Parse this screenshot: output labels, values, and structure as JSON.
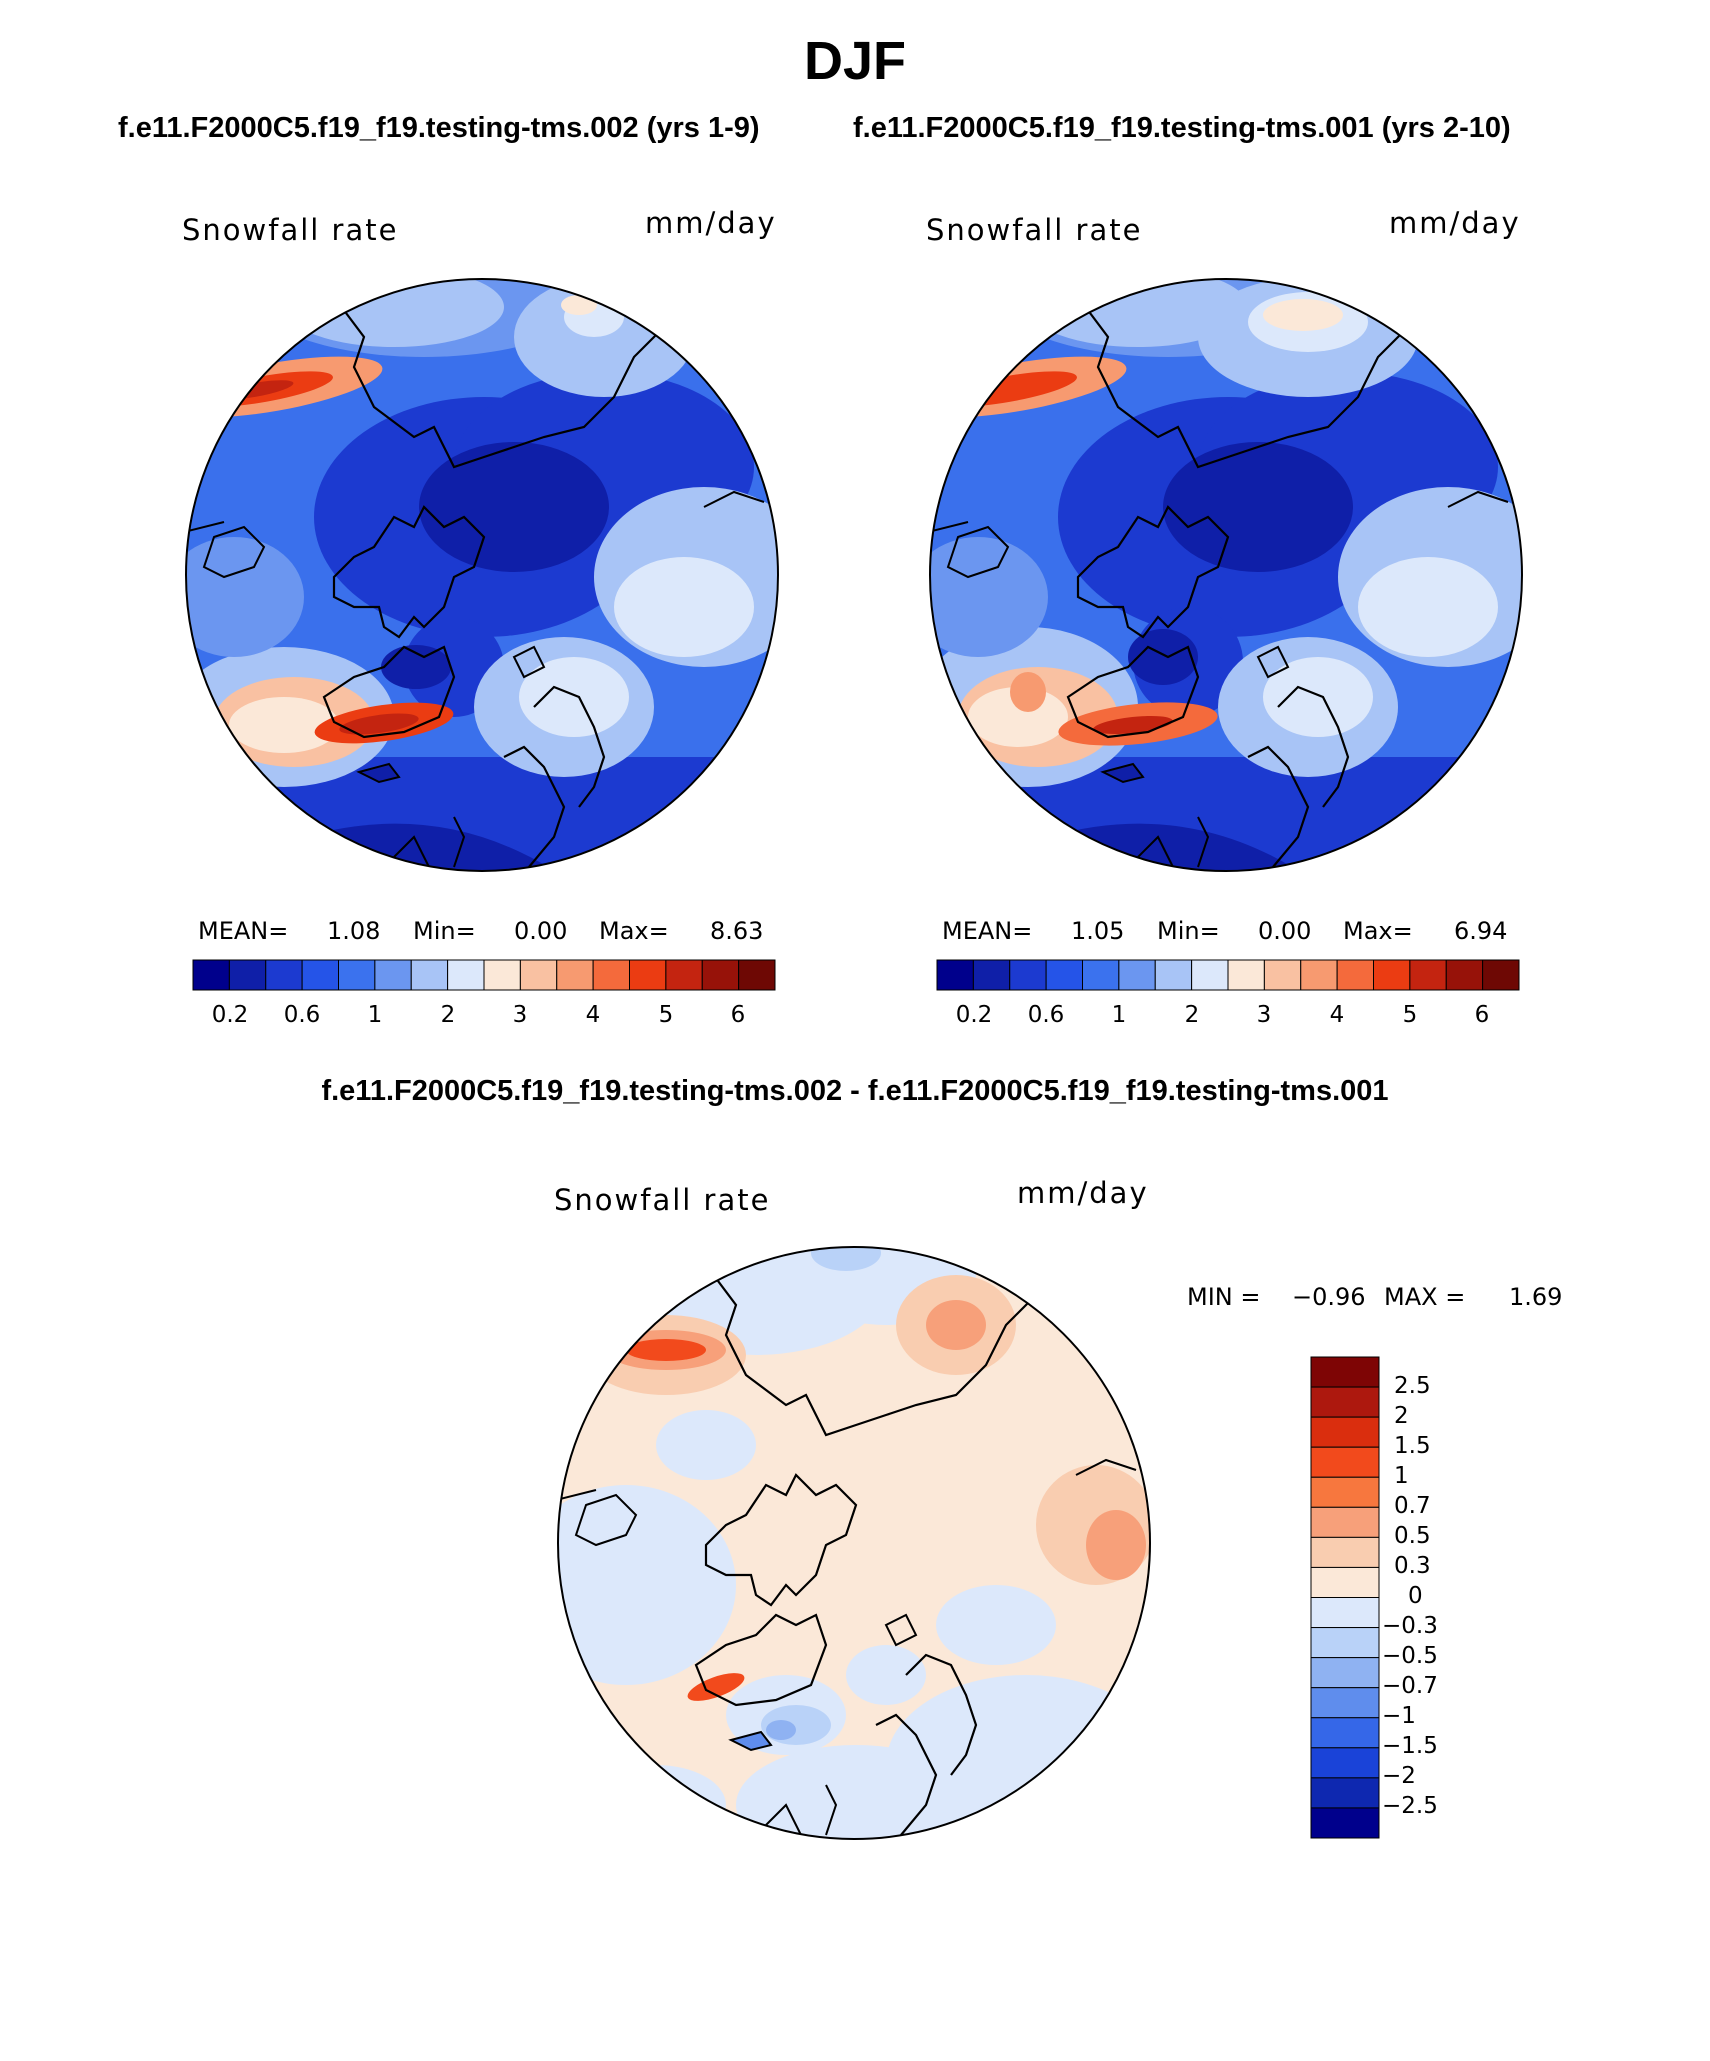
{
  "title": "DJF",
  "panel_left": {
    "run_title": "f.e11.F2000C5.f19_f19.testing-tms.002 (yrs 1-9)",
    "variable": "Snowfall rate",
    "units": "mm/day",
    "mean_label": "MEAN=",
    "mean": "1.08",
    "min_label": "Min=",
    "min": "0.00",
    "max_label": "Max=",
    "max": "8.63"
  },
  "panel_right": {
    "run_title": "f.e11.F2000C5.f19_f19.testing-tms.001 (yrs 2-10)",
    "variable": "Snowfall rate",
    "units": "mm/day",
    "mean_label": "MEAN=",
    "mean": "1.05",
    "min_label": "Min=",
    "min": "0.00",
    "max_label": "Max=",
    "max": "6.94"
  },
  "panel_diff": {
    "title": "f.e11.F2000C5.f19_f19.testing-tms.002 - f.e11.F2000C5.f19_f19.testing-tms.001",
    "variable": "Snowfall rate",
    "units": "mm/day",
    "min_label": "MIN =",
    "min": "−0.96",
    "max_label": "MAX =",
    "max": "1.69"
  },
  "colorbar_main": {
    "colors": [
      "#00008c",
      "#0f1fa8",
      "#1c3ad0",
      "#2554e8",
      "#3b72ee",
      "#6b96f0",
      "#a8c4f6",
      "#dce8fb",
      "#fbe8d8",
      "#f9c1a2",
      "#f79a70",
      "#f46a3c",
      "#eb3c12",
      "#c42410",
      "#971209",
      "#6e0804"
    ],
    "labels": [
      "0.2",
      "0.6",
      "1",
      "2",
      "3",
      "4",
      "5",
      "6"
    ]
  },
  "colorbar_diff": {
    "colors": [
      "#7e0505",
      "#ad180e",
      "#da2e0e",
      "#f24a1c",
      "#f7773e",
      "#f7a07a",
      "#f9cdb0",
      "#fbe8d8",
      "#dce8fb",
      "#b9d2f8",
      "#8fb2f2",
      "#5f8ded",
      "#3567e8",
      "#1a43d8",
      "#0e28b0",
      "#00008c"
    ],
    "labels": [
      "2.5",
      "2",
      "1.5",
      "1",
      "0.7",
      "0.5",
      "0.3",
      "0",
      "−0.3",
      "−0.5",
      "−0.7",
      "−1",
      "−1.5",
      "−2",
      "−2.5"
    ]
  }
}
